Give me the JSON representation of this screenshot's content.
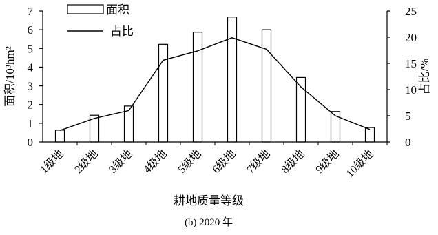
{
  "chart_data": {
    "type": "bar",
    "title": "",
    "caption": "(b) 2020 年",
    "xlabel": "耕地质量等级",
    "ylabel_left": "面积/10³hm²",
    "ylabel_right": "占比/%",
    "categories": [
      "1级地",
      "2级地",
      "3级地",
      "4级地",
      "5级地",
      "6级地",
      "7级地",
      "8级地",
      "9级地",
      "10级地"
    ],
    "series": [
      {
        "name": "面积",
        "type": "bar",
        "axis": "left",
        "values": [
          0.63,
          1.43,
          1.92,
          5.22,
          5.87,
          6.68,
          6.0,
          3.45,
          1.63,
          0.77
        ]
      },
      {
        "name": "占比",
        "type": "line",
        "axis": "right",
        "values": [
          2.2,
          4.5,
          6.0,
          15.6,
          17.4,
          19.9,
          17.7,
          10.5,
          5.0,
          2.4
        ]
      }
    ],
    "ylim_left": [
      0,
      7
    ],
    "yticks_left": [
      0,
      1,
      2,
      3,
      4,
      5,
      6,
      7
    ],
    "ylim_right": [
      0,
      25
    ],
    "yticks_right": [
      0,
      5,
      10,
      15,
      20,
      25
    ],
    "legend_position": "top-left",
    "grid": false
  }
}
